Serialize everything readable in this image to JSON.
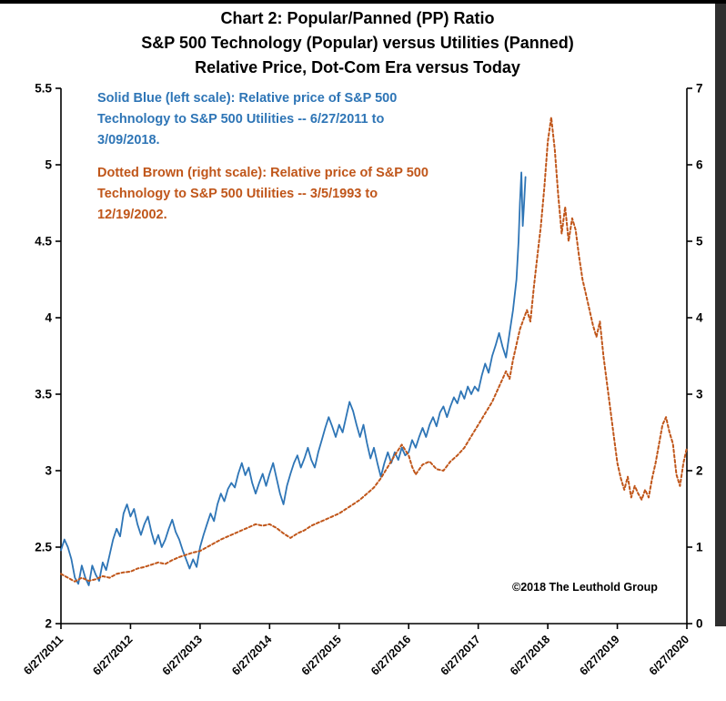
{
  "chart_data": {
    "type": "line",
    "title_lines": [
      "Chart 2: Popular/Panned (PP) Ratio",
      "S&P 500 Technology (Popular) versus Utilities (Panned)",
      "Relative Price, Dot-Com Era versus Today"
    ],
    "legend": {
      "blue_lines": [
        "Solid Blue (left scale): Relative price of S&P 500",
        "Technology to S&P 500 Utilities -- 6/27/2011 to",
        "3/09/2018."
      ],
      "brown_lines": [
        "Dotted Brown (right scale): Relative price of S&P 500",
        "Technology to S&P 500 Utilities -- 3/5/1993 to",
        "12/19/2002."
      ]
    },
    "copyright": "©2018 The Leuthold Group",
    "left_axis": {
      "range": [
        2,
        5.5
      ],
      "ticks": [
        2,
        2.5,
        3,
        3.5,
        4,
        4.5,
        5,
        5.5
      ]
    },
    "right_axis": {
      "range": [
        0,
        7
      ],
      "ticks": [
        0,
        1,
        2,
        3,
        4,
        5,
        6,
        7
      ]
    },
    "x_axis": {
      "range": [
        0,
        9
      ],
      "tick_positions": [
        0,
        1,
        2,
        3,
        4,
        5,
        6,
        7,
        8,
        9
      ],
      "tick_labels": [
        "6/27/2011",
        "6/27/2012",
        "6/27/2013",
        "6/27/2014",
        "6/27/2015",
        "6/27/2016",
        "6/27/2017",
        "6/27/2018",
        "6/27/2019",
        "6/27/2020"
      ]
    },
    "series": [
      {
        "id": "today",
        "name": "S&P 500 Technology to S&P 500 Utilities relative price, 6/27/2011 to 3/09/2018",
        "scale": "left",
        "style": "solid",
        "color": "#2e75b6",
        "width": 1.8,
        "points": [
          [
            0,
            2.48
          ],
          [
            0.05,
            2.55
          ],
          [
            0.1,
            2.5
          ],
          [
            0.15,
            2.42
          ],
          [
            0.2,
            2.3
          ],
          [
            0.25,
            2.26
          ],
          [
            0.3,
            2.38
          ],
          [
            0.35,
            2.3
          ],
          [
            0.4,
            2.25
          ],
          [
            0.45,
            2.38
          ],
          [
            0.5,
            2.32
          ],
          [
            0.55,
            2.28
          ],
          [
            0.6,
            2.4
          ],
          [
            0.65,
            2.35
          ],
          [
            0.7,
            2.45
          ],
          [
            0.75,
            2.55
          ],
          [
            0.8,
            2.62
          ],
          [
            0.85,
            2.57
          ],
          [
            0.9,
            2.72
          ],
          [
            0.95,
            2.78
          ],
          [
            1,
            2.7
          ],
          [
            1.05,
            2.75
          ],
          [
            1.1,
            2.65
          ],
          [
            1.15,
            2.58
          ],
          [
            1.2,
            2.65
          ],
          [
            1.25,
            2.7
          ],
          [
            1.3,
            2.6
          ],
          [
            1.35,
            2.52
          ],
          [
            1.4,
            2.58
          ],
          [
            1.45,
            2.5
          ],
          [
            1.5,
            2.55
          ],
          [
            1.55,
            2.62
          ],
          [
            1.6,
            2.68
          ],
          [
            1.65,
            2.6
          ],
          [
            1.7,
            2.55
          ],
          [
            1.75,
            2.48
          ],
          [
            1.8,
            2.42
          ],
          [
            1.85,
            2.36
          ],
          [
            1.9,
            2.42
          ],
          [
            1.95,
            2.37
          ],
          [
            2,
            2.5
          ],
          [
            2.05,
            2.58
          ],
          [
            2.1,
            2.65
          ],
          [
            2.15,
            2.72
          ],
          [
            2.2,
            2.67
          ],
          [
            2.25,
            2.78
          ],
          [
            2.3,
            2.85
          ],
          [
            2.35,
            2.8
          ],
          [
            2.4,
            2.88
          ],
          [
            2.45,
            2.92
          ],
          [
            2.5,
            2.89
          ],
          [
            2.55,
            2.98
          ],
          [
            2.6,
            3.05
          ],
          [
            2.65,
            2.97
          ],
          [
            2.7,
            3.02
          ],
          [
            2.75,
            2.92
          ],
          [
            2.8,
            2.85
          ],
          [
            2.85,
            2.92
          ],
          [
            2.9,
            2.98
          ],
          [
            2.95,
            2.9
          ],
          [
            3,
            2.98
          ],
          [
            3.05,
            3.05
          ],
          [
            3.1,
            2.95
          ],
          [
            3.15,
            2.85
          ],
          [
            3.2,
            2.78
          ],
          [
            3.25,
            2.9
          ],
          [
            3.3,
            2.98
          ],
          [
            3.35,
            3.05
          ],
          [
            3.4,
            3.1
          ],
          [
            3.45,
            3.02
          ],
          [
            3.5,
            3.08
          ],
          [
            3.55,
            3.15
          ],
          [
            3.6,
            3.07
          ],
          [
            3.65,
            3.02
          ],
          [
            3.7,
            3.12
          ],
          [
            3.75,
            3.2
          ],
          [
            3.8,
            3.28
          ],
          [
            3.85,
            3.35
          ],
          [
            3.9,
            3.29
          ],
          [
            3.95,
            3.22
          ],
          [
            4,
            3.3
          ],
          [
            4.05,
            3.25
          ],
          [
            4.1,
            3.35
          ],
          [
            4.15,
            3.45
          ],
          [
            4.2,
            3.39
          ],
          [
            4.25,
            3.3
          ],
          [
            4.3,
            3.22
          ],
          [
            4.35,
            3.3
          ],
          [
            4.4,
            3.18
          ],
          [
            4.45,
            3.08
          ],
          [
            4.5,
            3.15
          ],
          [
            4.55,
            3.05
          ],
          [
            4.6,
            2.96
          ],
          [
            4.65,
            3.05
          ],
          [
            4.7,
            3.12
          ],
          [
            4.75,
            3.05
          ],
          [
            4.8,
            3.12
          ],
          [
            4.85,
            3.07
          ],
          [
            4.9,
            3.15
          ],
          [
            4.95,
            3.1
          ],
          [
            5,
            3.12
          ],
          [
            5.05,
            3.2
          ],
          [
            5.1,
            3.15
          ],
          [
            5.15,
            3.22
          ],
          [
            5.2,
            3.28
          ],
          [
            5.25,
            3.22
          ],
          [
            5.3,
            3.3
          ],
          [
            5.35,
            3.35
          ],
          [
            5.4,
            3.29
          ],
          [
            5.45,
            3.38
          ],
          [
            5.5,
            3.42
          ],
          [
            5.55,
            3.35
          ],
          [
            5.6,
            3.42
          ],
          [
            5.65,
            3.48
          ],
          [
            5.7,
            3.44
          ],
          [
            5.75,
            3.52
          ],
          [
            5.8,
            3.47
          ],
          [
            5.85,
            3.55
          ],
          [
            5.9,
            3.5
          ],
          [
            5.95,
            3.55
          ],
          [
            6,
            3.52
          ],
          [
            6.05,
            3.62
          ],
          [
            6.1,
            3.7
          ],
          [
            6.15,
            3.64
          ],
          [
            6.2,
            3.75
          ],
          [
            6.25,
            3.82
          ],
          [
            6.3,
            3.9
          ],
          [
            6.35,
            3.81
          ],
          [
            6.4,
            3.74
          ],
          [
            6.45,
            3.9
          ],
          [
            6.5,
            4.05
          ],
          [
            6.55,
            4.25
          ],
          [
            6.58,
            4.5
          ],
          [
            6.6,
            4.75
          ],
          [
            6.62,
            4.95
          ],
          [
            6.64,
            4.6
          ],
          [
            6.66,
            4.75
          ],
          [
            6.68,
            4.92
          ]
        ]
      },
      {
        "id": "dotcom",
        "name": "S&P 500 Technology to S&P 500 Utilities relative price, 3/5/1993 to 12/19/2002",
        "scale": "right",
        "style": "dashed",
        "color": "#c0561a",
        "width": 2,
        "points": [
          [
            0,
            0.65
          ],
          [
            0.1,
            0.6
          ],
          [
            0.2,
            0.55
          ],
          [
            0.3,
            0.6
          ],
          [
            0.4,
            0.56
          ],
          [
            0.5,
            0.58
          ],
          [
            0.6,
            0.62
          ],
          [
            0.7,
            0.6
          ],
          [
            0.8,
            0.65
          ],
          [
            0.9,
            0.67
          ],
          [
            1,
            0.68
          ],
          [
            1.1,
            0.72
          ],
          [
            1.2,
            0.74
          ],
          [
            1.3,
            0.77
          ],
          [
            1.4,
            0.8
          ],
          [
            1.5,
            0.78
          ],
          [
            1.6,
            0.83
          ],
          [
            1.7,
            0.87
          ],
          [
            1.8,
            0.9
          ],
          [
            1.9,
            0.93
          ],
          [
            2,
            0.95
          ],
          [
            2.1,
            1
          ],
          [
            2.2,
            1.05
          ],
          [
            2.3,
            1.1
          ],
          [
            2.4,
            1.14
          ],
          [
            2.5,
            1.18
          ],
          [
            2.6,
            1.22
          ],
          [
            2.7,
            1.26
          ],
          [
            2.8,
            1.3
          ],
          [
            2.9,
            1.28
          ],
          [
            3,
            1.3
          ],
          [
            3.1,
            1.25
          ],
          [
            3.2,
            1.18
          ],
          [
            3.3,
            1.12
          ],
          [
            3.4,
            1.18
          ],
          [
            3.5,
            1.22
          ],
          [
            3.6,
            1.28
          ],
          [
            3.7,
            1.32
          ],
          [
            3.8,
            1.36
          ],
          [
            3.9,
            1.4
          ],
          [
            4,
            1.44
          ],
          [
            4.1,
            1.5
          ],
          [
            4.2,
            1.56
          ],
          [
            4.3,
            1.62
          ],
          [
            4.4,
            1.7
          ],
          [
            4.5,
            1.78
          ],
          [
            4.6,
            1.9
          ],
          [
            4.7,
            2.05
          ],
          [
            4.8,
            2.2
          ],
          [
            4.9,
            2.34
          ],
          [
            5,
            2.2
          ],
          [
            5.05,
            2.05
          ],
          [
            5.1,
            1.95
          ],
          [
            5.2,
            2.08
          ],
          [
            5.3,
            2.12
          ],
          [
            5.4,
            2.02
          ],
          [
            5.5,
            2
          ],
          [
            5.6,
            2.12
          ],
          [
            5.7,
            2.2
          ],
          [
            5.8,
            2.3
          ],
          [
            5.9,
            2.45
          ],
          [
            6,
            2.6
          ],
          [
            6.1,
            2.75
          ],
          [
            6.2,
            2.9
          ],
          [
            6.3,
            3.1
          ],
          [
            6.4,
            3.3
          ],
          [
            6.45,
            3.2
          ],
          [
            6.5,
            3.45
          ],
          [
            6.6,
            3.85
          ],
          [
            6.7,
            4.1
          ],
          [
            6.75,
            3.95
          ],
          [
            6.8,
            4.4
          ],
          [
            6.85,
            4.8
          ],
          [
            6.9,
            5.2
          ],
          [
            6.95,
            5.7
          ],
          [
            7,
            6.3
          ],
          [
            7.05,
            6.62
          ],
          [
            7.1,
            6.2
          ],
          [
            7.15,
            5.6
          ],
          [
            7.2,
            5.1
          ],
          [
            7.25,
            5.45
          ],
          [
            7.3,
            5
          ],
          [
            7.35,
            5.3
          ],
          [
            7.4,
            5.15
          ],
          [
            7.45,
            4.8
          ],
          [
            7.5,
            4.5
          ],
          [
            7.55,
            4.3
          ],
          [
            7.6,
            4.1
          ],
          [
            7.65,
            3.9
          ],
          [
            7.7,
            3.75
          ],
          [
            7.75,
            3.95
          ],
          [
            7.8,
            3.5
          ],
          [
            7.85,
            3.15
          ],
          [
            7.9,
            2.8
          ],
          [
            7.95,
            2.45
          ],
          [
            8,
            2.1
          ],
          [
            8.05,
            1.9
          ],
          [
            8.1,
            1.75
          ],
          [
            8.15,
            1.92
          ],
          [
            8.2,
            1.65
          ],
          [
            8.25,
            1.8
          ],
          [
            8.3,
            1.7
          ],
          [
            8.35,
            1.62
          ],
          [
            8.4,
            1.75
          ],
          [
            8.45,
            1.65
          ],
          [
            8.5,
            1.9
          ],
          [
            8.55,
            2.1
          ],
          [
            8.6,
            2.35
          ],
          [
            8.65,
            2.6
          ],
          [
            8.7,
            2.7
          ],
          [
            8.75,
            2.5
          ],
          [
            8.8,
            2.35
          ],
          [
            8.85,
            1.95
          ],
          [
            8.9,
            1.8
          ],
          [
            8.95,
            2.1
          ],
          [
            9,
            2.3
          ]
        ]
      }
    ]
  }
}
